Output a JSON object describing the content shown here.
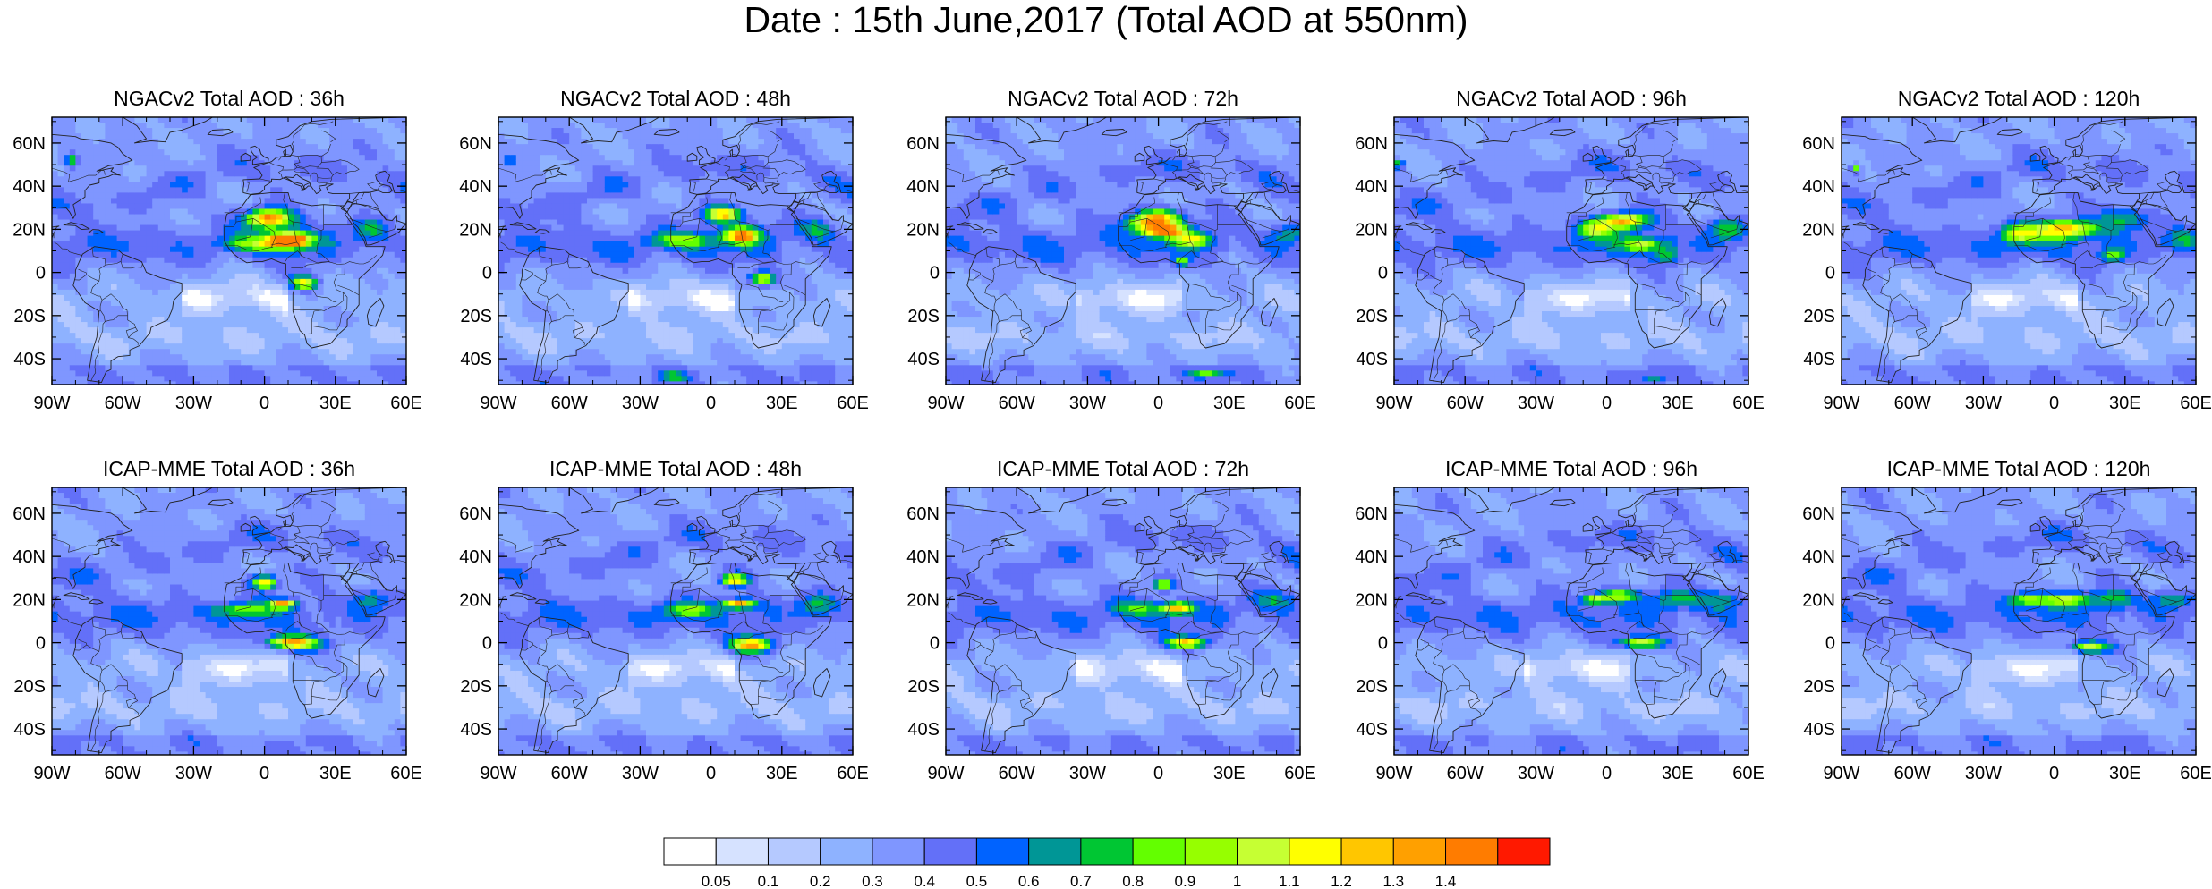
{
  "title": "Date : 15th June,2017 (Total AOD at 550nm)",
  "rows": [
    {
      "model": "NGACv2",
      "panels": [
        {
          "title": "NGACv2 Total AOD : 36h"
        },
        {
          "title": "NGACv2 Total AOD : 48h"
        },
        {
          "title": "NGACv2 Total AOD : 72h"
        },
        {
          "title": "NGACv2 Total AOD : 96h"
        },
        {
          "title": "NGACv2 Total AOD : 120h"
        }
      ]
    },
    {
      "model": "ICAP-MME",
      "panels": [
        {
          "title": "ICAP-MME Total AOD : 36h"
        },
        {
          "title": "ICAP-MME Total AOD : 48h"
        },
        {
          "title": "ICAP-MME Total AOD : 72h"
        },
        {
          "title": "ICAP-MME Total AOD : 96h"
        },
        {
          "title": "ICAP-MME Total AOD : 120h"
        }
      ]
    }
  ],
  "map_extent": {
    "lon": [
      -90,
      60
    ],
    "lat": [
      -52,
      72
    ]
  },
  "lat_ticks": [
    {
      "value": 60,
      "label": "60N"
    },
    {
      "value": 40,
      "label": "40N"
    },
    {
      "value": 20,
      "label": "20N"
    },
    {
      "value": 0,
      "label": "0"
    },
    {
      "value": -20,
      "label": "20S"
    },
    {
      "value": -40,
      "label": "40S"
    }
  ],
  "lon_ticks": [
    {
      "value": -90,
      "label": "90W"
    },
    {
      "value": -60,
      "label": "60W"
    },
    {
      "value": -30,
      "label": "30W"
    },
    {
      "value": 0,
      "label": "0"
    },
    {
      "value": 30,
      "label": "30E"
    },
    {
      "value": 60,
      "label": "60E"
    }
  ],
  "colorbar": {
    "colors": [
      "#ffffff",
      "#d6e2ff",
      "#b5c9ff",
      "#8eb2ff",
      "#7f96ff",
      "#6370f8",
      "#0063ff",
      "#009696",
      "#00c633",
      "#63ff00",
      "#96ff00",
      "#c6ff33",
      "#ffff00",
      "#ffc600",
      "#ffa000",
      "#ff7c00",
      "#ff1900"
    ],
    "labels": [
      "0.05",
      "0.1",
      "0.2",
      "0.3",
      "0.4",
      "0.5",
      "0.6",
      "0.7",
      "0.8",
      "0.9",
      "1",
      "1.1",
      "1.2",
      "1.3",
      "1.4"
    ]
  },
  "colors": {
    "ocean_background": "#c4d3fd",
    "coastline": "#222222"
  }
}
